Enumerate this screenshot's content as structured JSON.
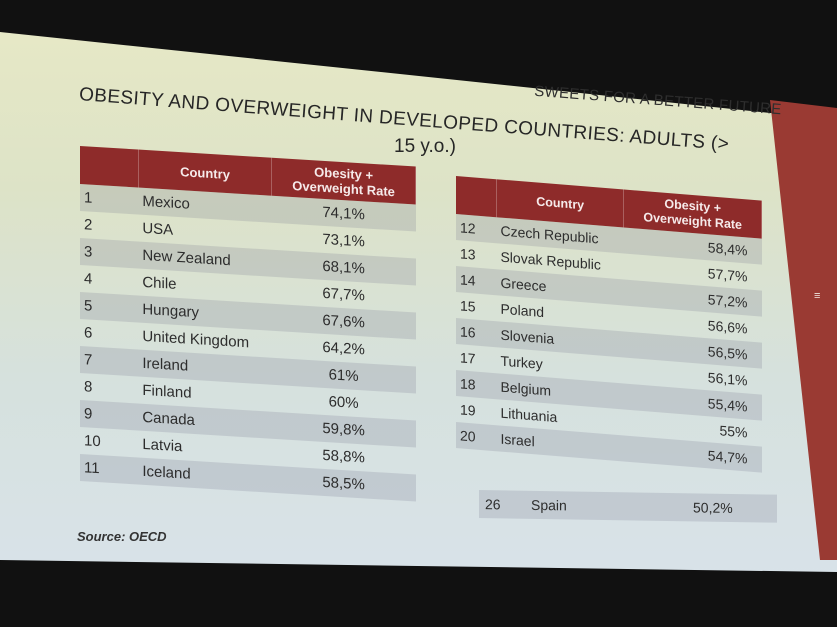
{
  "slide": {
    "brand": "SWEETS FOR A BETTER FUTURE",
    "title_line1": "OBESITY AND OVERWEIGHT IN DEVELOPED COUNTRIES: ADULTS (>",
    "title_line2": "15 y.o.)",
    "source": "Source: OECD"
  },
  "colors": {
    "header_bg": "#8e2b2a",
    "accent_band": "#9a3a33"
  },
  "table_left": {
    "headers": {
      "rank": "",
      "country": "Country",
      "rate_line1": "Obesity +",
      "rate_line2": "Overweight Rate"
    },
    "rows": [
      {
        "rank": "1",
        "country": "Mexico",
        "rate": "74,1%"
      },
      {
        "rank": "2",
        "country": "USA",
        "rate": "73,1%"
      },
      {
        "rank": "3",
        "country": "New Zealand",
        "rate": "68,1%"
      },
      {
        "rank": "4",
        "country": "Chile",
        "rate": "67,7%"
      },
      {
        "rank": "5",
        "country": "Hungary",
        "rate": "67,6%"
      },
      {
        "rank": "6",
        "country": "United Kingdom",
        "rate": "64,2%"
      },
      {
        "rank": "7",
        "country": "Ireland",
        "rate": "61%"
      },
      {
        "rank": "8",
        "country": "Finland",
        "rate": "60%"
      },
      {
        "rank": "9",
        "country": "Canada",
        "rate": "59,8%"
      },
      {
        "rank": "10",
        "country": "Latvia",
        "rate": "58,8%"
      },
      {
        "rank": "11",
        "country": "Iceland",
        "rate": "58,5%"
      }
    ]
  },
  "table_right": {
    "headers": {
      "rank": "",
      "country": "Country",
      "rate_line1": "Obesity +",
      "rate_line2": "Overweight Rate"
    },
    "rows": [
      {
        "rank": "12",
        "country": "Czech Republic",
        "rate": "58,4%"
      },
      {
        "rank": "13",
        "country": "Slovak Republic",
        "rate": "57,7%"
      },
      {
        "rank": "14",
        "country": "Greece",
        "rate": "57,2%"
      },
      {
        "rank": "15",
        "country": "Poland",
        "rate": "56,6%"
      },
      {
        "rank": "16",
        "country": "Slovenia",
        "rate": "56,5%"
      },
      {
        "rank": "17",
        "country": "Turkey",
        "rate": "56,1%"
      },
      {
        "rank": "18",
        "country": "Belgium",
        "rate": "55,4%"
      },
      {
        "rank": "19",
        "country": "Lithuania",
        "rate": "55%"
      },
      {
        "rank": "20",
        "country": "Israel",
        "rate": "54,7%"
      }
    ],
    "extra_row": {
      "rank": "26",
      "country": "Spain",
      "rate": "50,2%"
    }
  }
}
